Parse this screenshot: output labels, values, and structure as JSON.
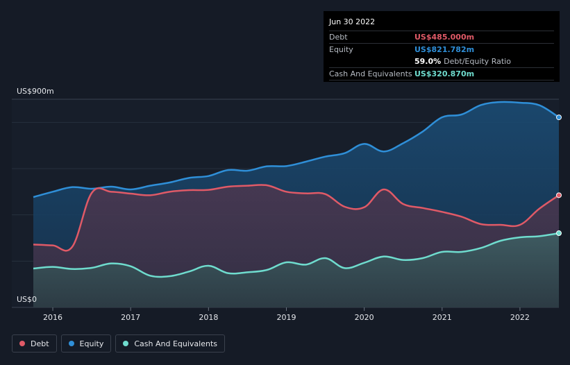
{
  "chart_data": {
    "type": "area",
    "title": "",
    "xlabel": "",
    "ylabel": "",
    "y_unit_prefix": "US$",
    "ylim": [
      0,
      900
    ],
    "xlim": [
      2015.75,
      2022.5
    ],
    "y_axis_labels": {
      "top": "US$900m",
      "bottom": "US$0"
    },
    "x_ticks": [
      2016,
      2017,
      2018,
      2019,
      2020,
      2021,
      2022
    ],
    "x_tick_labels": [
      "2016",
      "2017",
      "2018",
      "2019",
      "2020",
      "2021",
      "2022"
    ],
    "grid": true,
    "series": [
      {
        "name": "Equity",
        "color": "#2f8fd8",
        "points": [
          [
            2015.75,
            477
          ],
          [
            2016.0,
            500
          ],
          [
            2016.25,
            520
          ],
          [
            2016.5,
            513
          ],
          [
            2016.75,
            522
          ],
          [
            2017.0,
            510
          ],
          [
            2017.25,
            526
          ],
          [
            2017.5,
            540
          ],
          [
            2017.75,
            560
          ],
          [
            2018.0,
            568
          ],
          [
            2018.25,
            594
          ],
          [
            2018.5,
            591
          ],
          [
            2018.75,
            610
          ],
          [
            2019.0,
            611
          ],
          [
            2019.25,
            630
          ],
          [
            2019.5,
            652
          ],
          [
            2019.75,
            667
          ],
          [
            2020.0,
            707
          ],
          [
            2020.25,
            674
          ],
          [
            2020.5,
            710
          ],
          [
            2020.75,
            760
          ],
          [
            2021.0,
            822
          ],
          [
            2021.25,
            834
          ],
          [
            2021.5,
            875
          ],
          [
            2021.75,
            888
          ],
          [
            2022.0,
            885
          ],
          [
            2022.25,
            874
          ],
          [
            2022.5,
            821.782
          ]
        ]
      },
      {
        "name": "Debt",
        "color": "#e05a67",
        "points": [
          [
            2015.75,
            272
          ],
          [
            2016.0,
            268
          ],
          [
            2016.25,
            262
          ],
          [
            2016.5,
            495
          ],
          [
            2016.75,
            500
          ],
          [
            2017.0,
            492
          ],
          [
            2017.25,
            485
          ],
          [
            2017.5,
            500
          ],
          [
            2017.75,
            507
          ],
          [
            2018.0,
            508
          ],
          [
            2018.25,
            522
          ],
          [
            2018.5,
            526
          ],
          [
            2018.75,
            528
          ],
          [
            2019.0,
            500
          ],
          [
            2019.25,
            493
          ],
          [
            2019.5,
            490
          ],
          [
            2019.75,
            435
          ],
          [
            2020.0,
            433
          ],
          [
            2020.25,
            510
          ],
          [
            2020.5,
            447
          ],
          [
            2020.75,
            430
          ],
          [
            2021.0,
            413
          ],
          [
            2021.25,
            392
          ],
          [
            2021.5,
            360
          ],
          [
            2021.75,
            357
          ],
          [
            2022.0,
            357
          ],
          [
            2022.25,
            427
          ],
          [
            2022.5,
            485.0
          ]
        ]
      },
      {
        "name": "Cash And Equivalents",
        "color": "#6fdcce",
        "points": [
          [
            2015.75,
            168
          ],
          [
            2016.0,
            175
          ],
          [
            2016.25,
            166
          ],
          [
            2016.5,
            171
          ],
          [
            2016.75,
            190
          ],
          [
            2017.0,
            178
          ],
          [
            2017.25,
            137
          ],
          [
            2017.5,
            135
          ],
          [
            2017.75,
            155
          ],
          [
            2018.0,
            180
          ],
          [
            2018.25,
            148
          ],
          [
            2018.5,
            152
          ],
          [
            2018.75,
            162
          ],
          [
            2019.0,
            195
          ],
          [
            2019.25,
            185
          ],
          [
            2019.5,
            213
          ],
          [
            2019.75,
            170
          ],
          [
            2020.0,
            193
          ],
          [
            2020.25,
            220
          ],
          [
            2020.5,
            205
          ],
          [
            2020.75,
            213
          ],
          [
            2021.0,
            240
          ],
          [
            2021.25,
            240
          ],
          [
            2021.5,
            257
          ],
          [
            2021.75,
            288
          ],
          [
            2022.0,
            303
          ],
          [
            2022.25,
            308
          ],
          [
            2022.5,
            320.87
          ]
        ]
      }
    ]
  },
  "tooltip": {
    "date": "Jun 30 2022",
    "debt_label": "Debt",
    "debt_value": "US$485.000m",
    "equity_label": "Equity",
    "equity_value": "US$821.782m",
    "ratio_value": "59.0%",
    "ratio_label": "Debt/Equity Ratio",
    "cash_label": "Cash And Equivalents",
    "cash_value": "US$320.870m",
    "colors": {
      "debt": "#e05a67",
      "equity": "#2f8fd8",
      "cash": "#6fdcce",
      "ratio": "#ffffff"
    }
  },
  "legend": [
    {
      "label": "Debt",
      "color": "#e05a67"
    },
    {
      "label": "Equity",
      "color": "#2f8fd8"
    },
    {
      "label": "Cash And Equivalents",
      "color": "#6fdcce"
    }
  ]
}
